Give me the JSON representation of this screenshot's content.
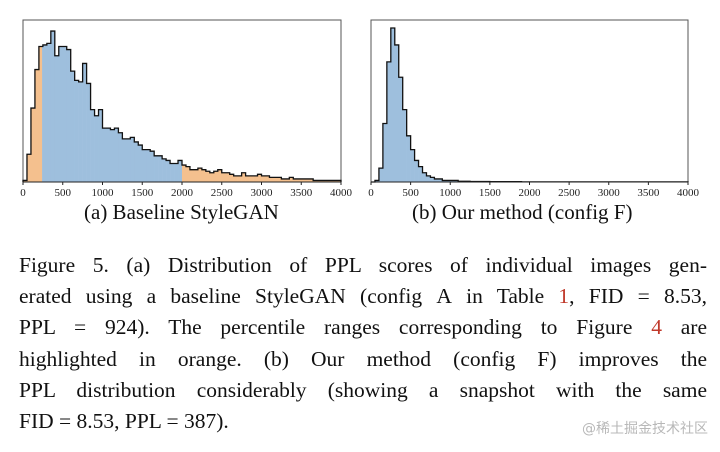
{
  "chart_data": [
    {
      "type": "histogram",
      "name": "baseline",
      "caption": "(a) Baseline StyleGAN",
      "xlabel": "",
      "ylabel": "",
      "xlim": [
        0,
        4000
      ],
      "x_ticks": [
        "0",
        "500",
        "1000",
        "1500",
        "2000",
        "2500",
        "3000",
        "3500",
        "4000"
      ],
      "bin_width": 50,
      "y_axis": "relative frequency (unlabeled, normalized to max)",
      "highlight_ranges": [
        [
          0,
          240
        ],
        [
          2000,
          4000
        ]
      ],
      "highlight_color": "#f4c08e",
      "base_color": "#9ebfdd",
      "outline_color": "#111111",
      "values": [
        0.01,
        0.18,
        0.48,
        0.73,
        0.88,
        0.89,
        0.9,
        0.98,
        0.82,
        0.88,
        0.88,
        0.86,
        0.72,
        0.66,
        0.65,
        0.77,
        0.64,
        0.47,
        0.43,
        0.47,
        0.35,
        0.35,
        0.34,
        0.35,
        0.32,
        0.28,
        0.28,
        0.29,
        0.26,
        0.24,
        0.21,
        0.21,
        0.2,
        0.17,
        0.17,
        0.15,
        0.14,
        0.12,
        0.12,
        0.14,
        0.11,
        0.1,
        0.08,
        0.08,
        0.09,
        0.08,
        0.07,
        0.06,
        0.07,
        0.08,
        0.06,
        0.06,
        0.05,
        0.04,
        0.04,
        0.06,
        0.04,
        0.04,
        0.04,
        0.05,
        0.04,
        0.04,
        0.03,
        0.03,
        0.03,
        0.02,
        0.02,
        0.03,
        0.02,
        0.02,
        0.02,
        0.02,
        0.02,
        0.01,
        0.01,
        0.01,
        0.01,
        0.01,
        0.01,
        0.01
      ]
    },
    {
      "type": "histogram",
      "name": "ours",
      "caption_prefix": "(b) Our method (config ",
      "caption_sc": "F",
      "caption_suffix": ")",
      "xlabel": "",
      "ylabel": "",
      "xlim": [
        0,
        4000
      ],
      "x_ticks": [
        "0",
        "500",
        "1000",
        "1500",
        "2000",
        "2500",
        "3000",
        "3500",
        "4000"
      ],
      "bin_width": 50,
      "y_axis": "relative frequency (unlabeled, normalized to max)",
      "base_color": "#9ebfdd",
      "outline_color": "#111111",
      "values": [
        0.0,
        0.01,
        0.09,
        0.38,
        0.78,
        1.0,
        0.89,
        0.68,
        0.47,
        0.3,
        0.21,
        0.14,
        0.1,
        0.06,
        0.04,
        0.03,
        0.02,
        0.02,
        0.01,
        0.01,
        0.01,
        0.01,
        0.005,
        0.005,
        0.005,
        0.003,
        0.003,
        0.003,
        0.003,
        0.003,
        0.002,
        0.002,
        0.002,
        0.002,
        0.002,
        0.002,
        0.002,
        0.002,
        0.001,
        0.001,
        0.001,
        0.001,
        0.001,
        0.001,
        0.001,
        0.001,
        0.001,
        0.001,
        0.001,
        0.001,
        0.001,
        0.001,
        0.001,
        0.001,
        0.001,
        0.001,
        0.001,
        0.001,
        0.001,
        0.001,
        0.001,
        0.001,
        0.001,
        0.001,
        0.001,
        0.001,
        0.001,
        0.001,
        0.001,
        0.001,
        0.001,
        0.001,
        0.001,
        0.001,
        0.001,
        0.001,
        0.001,
        0.001,
        0.001,
        0.001
      ]
    }
  ],
  "caption": {
    "lines": [
      [
        "Figure 5.  (a) Distribution of PPL scores of individual images gen-"
      ],
      [
        "erated using a baseline StyleGAN (config ",
        {
          "sc": "A"
        },
        " in Table ",
        {
          "ref": "1"
        },
        ", FID = 8.53,"
      ],
      [
        "PPL = 924).  The percentile ranges corresponding to Figure ",
        {
          "ref": "4"
        },
        " are"
      ],
      [
        "highlighted in orange.  (b) Our method (config ",
        {
          "sc": "F"
        },
        ") improves the"
      ],
      [
        "PPL distribution considerably (showing a snapshot with the same"
      ],
      [
        "FID = 8.53, PPL = 387)."
      ]
    ]
  },
  "watermark": "@稀土掘金技术社区"
}
